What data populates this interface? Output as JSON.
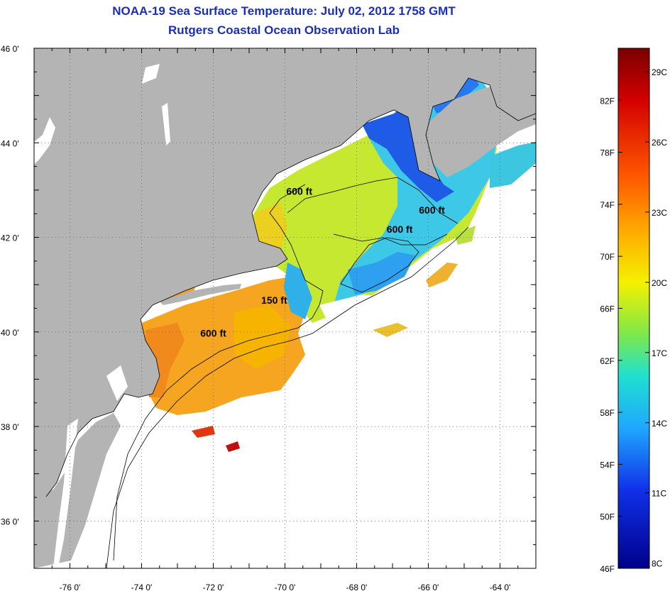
{
  "title_line1": "NOAA-19 Sea Surface Temperature:  July 02, 2012 1758 GMT",
  "title_line2": "Rutgers Coastal Ocean Observation Lab",
  "map": {
    "lon_range": [
      -77,
      -63
    ],
    "lat_range": [
      35,
      46
    ],
    "lat_labels": [
      {
        "lat": 46,
        "text": "46 0'"
      },
      {
        "lat": 44,
        "text": "44 0'"
      },
      {
        "lat": 42,
        "text": "42 0'"
      },
      {
        "lat": 40,
        "text": "40 0'"
      },
      {
        "lat": 38,
        "text": "38 0'"
      },
      {
        "lat": 36,
        "text": "36 0'"
      }
    ],
    "lon_labels": [
      {
        "lon": -76,
        "text": "-76 0'"
      },
      {
        "lon": -74,
        "text": "-74 0'"
      },
      {
        "lon": -72,
        "text": "-72 0'"
      },
      {
        "lon": -70,
        "text": "-70 0'"
      },
      {
        "lon": -68,
        "text": "-68 0'"
      },
      {
        "lon": -66,
        "text": "-66 0'"
      },
      {
        "lon": -64,
        "text": "-64 0'"
      }
    ],
    "contour_labels": [
      {
        "text": "600 ft",
        "lon": -72.0,
        "lat": 39.9
      },
      {
        "text": "150 ft",
        "lon": -70.3,
        "lat": 40.6
      },
      {
        "text": "600 ft",
        "lon": -69.6,
        "lat": 42.9
      },
      {
        "text": "600 ft",
        "lon": -65.9,
        "lat": 42.5
      },
      {
        "text": "600 ft",
        "lon": -66.8,
        "lat": 42.1
      }
    ],
    "colors": {
      "land": "#b4b4b4",
      "cloud": "#ffffff",
      "contour": "#000000"
    }
  },
  "colorbar": {
    "f_labels": [
      "82F",
      "78F",
      "74F",
      "70F",
      "66F",
      "62F",
      "58F",
      "54F",
      "50F",
      "46F"
    ],
    "c_labels": [
      "29C",
      "26C",
      "23C",
      "20C",
      "17C",
      "14C",
      "11C",
      "8C"
    ],
    "f_range": [
      46,
      86
    ],
    "c_values": [
      29,
      26,
      23,
      20,
      17,
      14,
      11,
      8
    ]
  }
}
